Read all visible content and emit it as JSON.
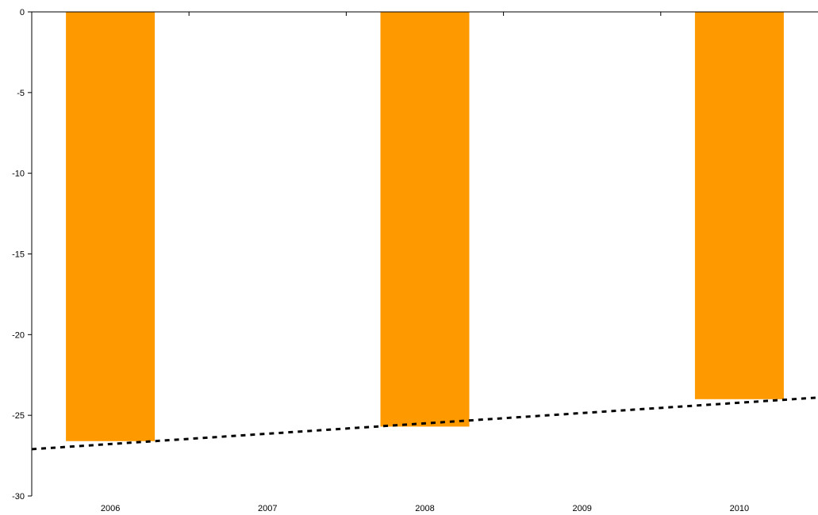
{
  "chart_data": {
    "type": "bar",
    "categories": [
      "2006",
      "2007",
      "2008",
      "2009",
      "2010"
    ],
    "series": [
      {
        "values": [
          -26.6,
          null,
          -25.7,
          null,
          -24.0
        ]
      }
    ],
    "trendline": {
      "style": "dotted",
      "type": "linear",
      "start_value": -27.1,
      "end_value": -23.9
    },
    "ylim": [
      -30,
      0
    ],
    "yticks": [
      0,
      -5,
      -10,
      -15,
      -20,
      -25,
      -30
    ],
    "x_axis_position": "top",
    "grid": false,
    "title": "",
    "xlabel": "",
    "ylabel": "",
    "colors": {
      "bar": "#FF9900",
      "trendline": "#000000",
      "axis": "#000000"
    }
  }
}
